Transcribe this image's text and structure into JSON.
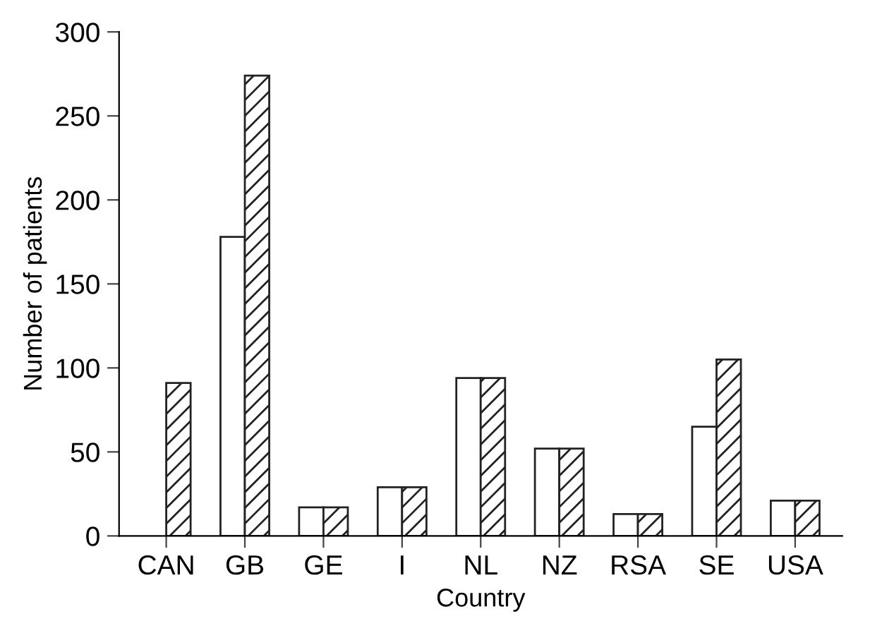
{
  "chart_data": {
    "type": "bar",
    "xlabel": "Country",
    "ylabel": "Number of patients",
    "categories": [
      "CAN",
      "GB",
      "GE",
      "I",
      "NL",
      "NZ",
      "RSA",
      "SE",
      "USA"
    ],
    "series": [
      {
        "color": "#ffffff",
        "values": [
          0,
          178,
          17,
          29,
          94,
          52,
          13,
          65,
          21
        ]
      },
      {
        "color": "#222222",
        "values": [
          91,
          274,
          17,
          29,
          94,
          52,
          13,
          105,
          21
        ]
      }
    ],
    "ylim": [
      0,
      300
    ],
    "yticks": [
      0,
      50,
      100,
      150,
      200,
      250,
      300
    ],
    "grid": false,
    "legend": false
  }
}
